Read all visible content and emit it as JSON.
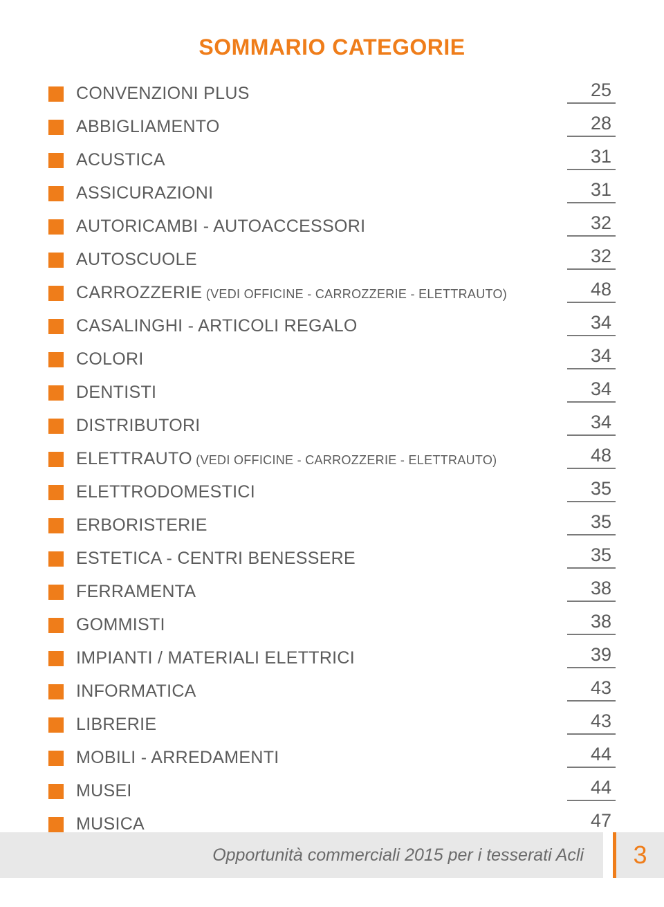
{
  "colors": {
    "accent": "#ef7d1a",
    "text": "#5b5b5b",
    "underline": "#7a7a7a",
    "footer_bar_bg": "#e8e8e8",
    "footer_page_bg": "#e8e8e8",
    "footer_border": "#ef7d1a",
    "footer_text": "#6a6a6a",
    "footer_page_color": "#ef7d1a"
  },
  "typography": {
    "title_fontsize": 32,
    "label_fontsize": 25,
    "sublabel_fontsize": 18,
    "page_fontsize": 27,
    "footer_fontsize": 25,
    "footer_pagenum_fontsize": 36
  },
  "layout": {
    "underline_thickness": 2
  },
  "title": "SOMMARIO CATEGORIE",
  "toc": [
    {
      "label": "CONVENZIONI PLUS",
      "sub": "",
      "page": "25"
    },
    {
      "label": "ABBIGLIAMENTO",
      "sub": "",
      "page": "28"
    },
    {
      "label": "ACUSTICA",
      "sub": "",
      "page": "31"
    },
    {
      "label": "ASSICURAZIONI",
      "sub": "",
      "page": "31"
    },
    {
      "label": "AUTORICAMBI - AUTOACCESSORI",
      "sub": "",
      "page": "32"
    },
    {
      "label": "AUTOSCUOLE",
      "sub": "",
      "page": "32"
    },
    {
      "label": "CARROZZERIE",
      "sub": " (VEDI OFFICINE - CARROZZERIE - ELETTRAUTO)",
      "page": "48"
    },
    {
      "label": "CASALINGHI - ARTICOLI REGALO",
      "sub": "",
      "page": "34"
    },
    {
      "label": "COLORI",
      "sub": "",
      "page": "34"
    },
    {
      "label": "DENTISTI",
      "sub": "",
      "page": "34"
    },
    {
      "label": "DISTRIBUTORI",
      "sub": "",
      "page": "34"
    },
    {
      "label": "ELETTRAUTO",
      "sub": " (VEDI OFFICINE - CARROZZERIE - ELETTRAUTO)",
      "page": "48"
    },
    {
      "label": "ELETTRODOMESTICI",
      "sub": "",
      "page": "35"
    },
    {
      "label": "ERBORISTERIE",
      "sub": "",
      "page": "35"
    },
    {
      "label": "ESTETICA - CENTRI BENESSERE",
      "sub": "",
      "page": "35"
    },
    {
      "label": "FERRAMENTA",
      "sub": "",
      "page": "38"
    },
    {
      "label": "GOMMISTI",
      "sub": "",
      "page": "38"
    },
    {
      "label": "IMPIANTI / MATERIALI ELETTRICI",
      "sub": "",
      "page": "39"
    },
    {
      "label": "INFORMATICA",
      "sub": "",
      "page": "43"
    },
    {
      "label": "LIBRERIE",
      "sub": "",
      "page": "43"
    },
    {
      "label": "MOBILI - ARREDAMENTI",
      "sub": "",
      "page": "44"
    },
    {
      "label": "MUSEI",
      "sub": "",
      "page": "44"
    },
    {
      "label": "MUSICA",
      "sub": "",
      "page": "47"
    }
  ],
  "footer": {
    "text": "Opportunità commerciali 2015 per i tesserati Acli",
    "page_number": "3"
  }
}
